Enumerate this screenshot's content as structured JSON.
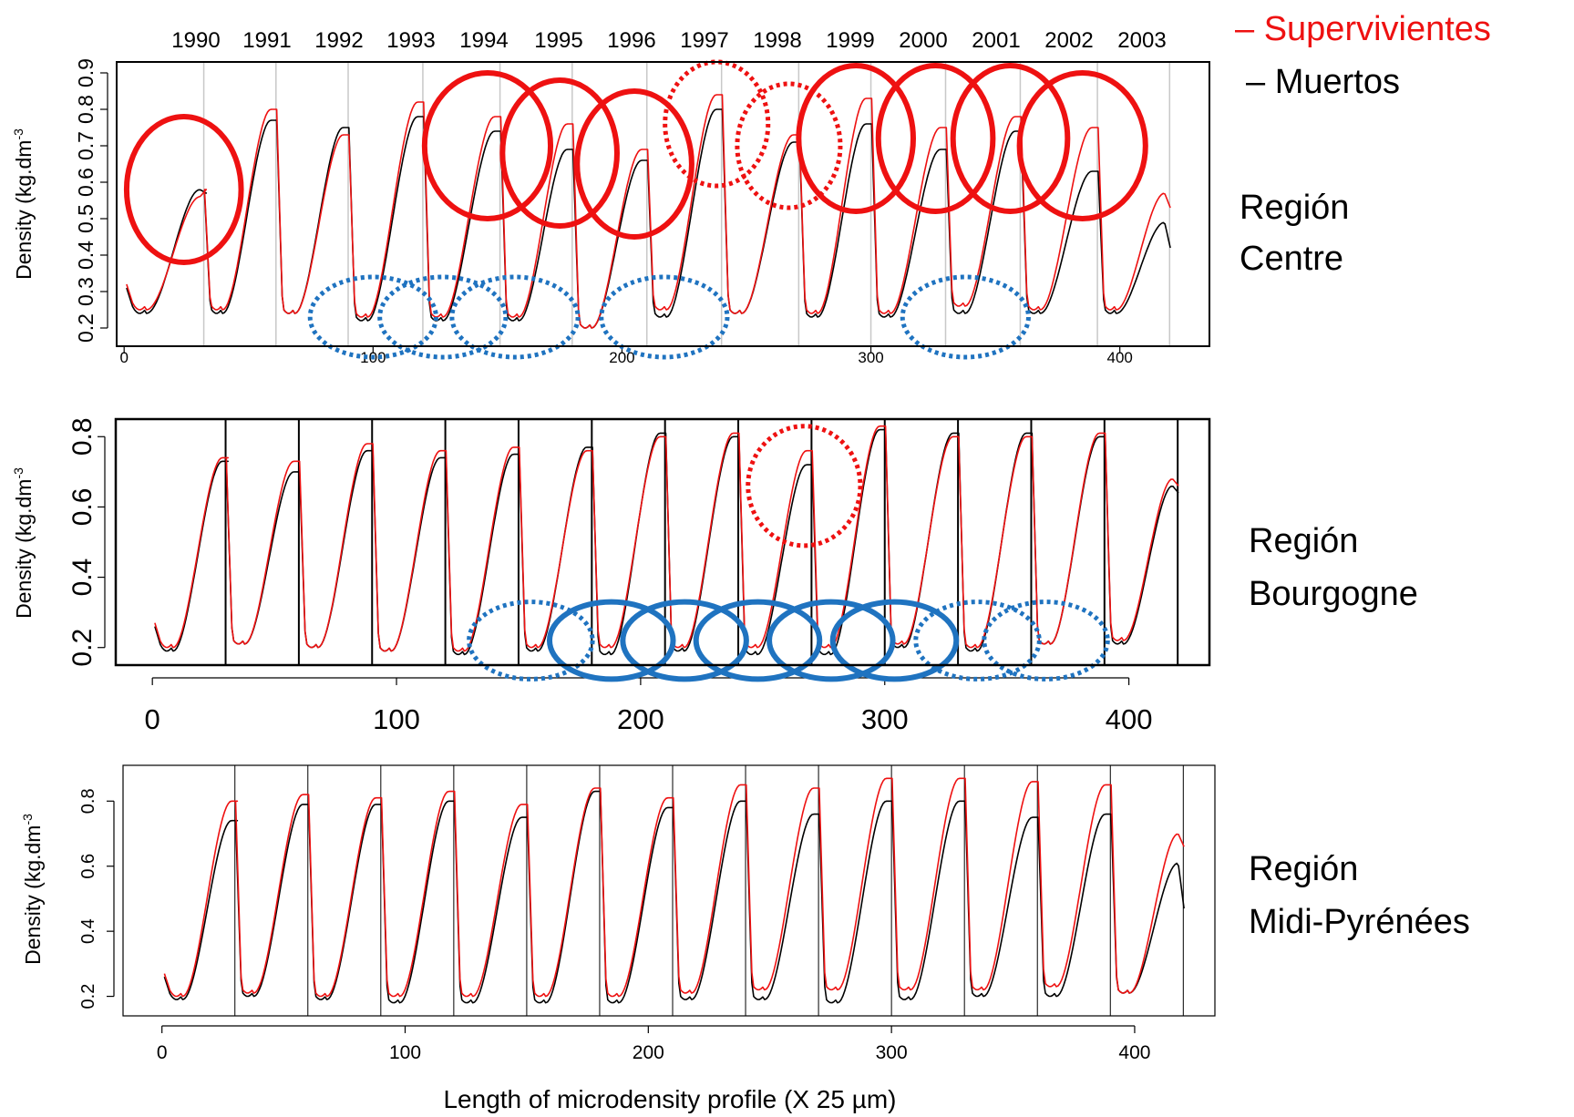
{
  "legend": {
    "items": [
      {
        "label": "– Supervivientes",
        "color": "#ee1111"
      },
      {
        "label": "– Muertos",
        "color": "#000000"
      }
    ]
  },
  "colors": {
    "survivors": "#ee1111",
    "dead": "#000000",
    "circle_red": "#ee1111",
    "circle_blue": "#1f73c0",
    "year_divider_top": "#c8c8c8",
    "year_divider_other": "#000000"
  },
  "chart_data": [
    {
      "type": "line",
      "region": "Región Centre",
      "region_lines": [
        "Región",
        "Centre"
      ],
      "ylabel": "Density (kg.dm",
      "ylabel_sup": "-3",
      "xlabel": "",
      "xlim": [
        -3,
        436
      ],
      "ylim": [
        0.15,
        0.93
      ],
      "x_ticks": [
        0,
        100,
        200,
        300,
        400
      ],
      "y_ticks": [
        0.2,
        0.3,
        0.4,
        0.5,
        0.6,
        0.7,
        0.8,
        0.9
      ],
      "y_tick_labels": [
        "0.2",
        "0.3",
        "0.4",
        "0.5",
        "0.6",
        "0.7",
        "0.8",
        "0.9"
      ],
      "year_labels": [
        "1990",
        "1991",
        "1992",
        "1993",
        "1994",
        "1995",
        "1996",
        "1997",
        "1998",
        "1999",
        "2000",
        "2001",
        "2002",
        "2003"
      ],
      "year_boundaries": [
        0,
        32,
        61,
        90,
        120,
        151,
        180,
        210,
        240,
        271,
        300,
        330,
        360,
        391,
        420
      ],
      "rings": [
        {
          "min_s": 0.25,
          "min_d": 0.24,
          "max_s": 0.56,
          "max_d": 0.58,
          "end_s": 0.58,
          "end_d": 0.57
        },
        {
          "min_s": 0.25,
          "min_d": 0.24,
          "max_s": 0.8,
          "max_d": 0.77,
          "end_s": 0.8,
          "end_d": 0.77
        },
        {
          "min_s": 0.24,
          "min_d": 0.24,
          "max_s": 0.73,
          "max_d": 0.75,
          "end_s": 0.73,
          "end_d": 0.75
        },
        {
          "min_s": 0.23,
          "min_d": 0.22,
          "max_s": 0.82,
          "max_d": 0.78,
          "end_s": 0.82,
          "end_d": 0.78
        },
        {
          "min_s": 0.23,
          "min_d": 0.22,
          "max_s": 0.78,
          "max_d": 0.74,
          "end_s": 0.78,
          "end_d": 0.74
        },
        {
          "min_s": 0.23,
          "min_d": 0.22,
          "max_s": 0.76,
          "max_d": 0.69,
          "end_s": 0.76,
          "end_d": 0.69
        },
        {
          "min_s": 0.2,
          "min_d": 0.2,
          "max_s": 0.69,
          "max_d": 0.66,
          "end_s": 0.69,
          "end_d": 0.66
        },
        {
          "min_s": 0.25,
          "min_d": 0.23,
          "max_s": 0.84,
          "max_d": 0.8,
          "end_s": 0.84,
          "end_d": 0.8
        },
        {
          "min_s": 0.24,
          "min_d": 0.24,
          "max_s": 0.73,
          "max_d": 0.71,
          "end_s": 0.73,
          "end_d": 0.71
        },
        {
          "min_s": 0.24,
          "min_d": 0.23,
          "max_s": 0.83,
          "max_d": 0.76,
          "end_s": 0.83,
          "end_d": 0.76
        },
        {
          "min_s": 0.24,
          "min_d": 0.23,
          "max_s": 0.75,
          "max_d": 0.69,
          "end_s": 0.75,
          "end_d": 0.69
        },
        {
          "min_s": 0.26,
          "min_d": 0.24,
          "max_s": 0.78,
          "max_d": 0.74,
          "end_s": 0.78,
          "end_d": 0.74
        },
        {
          "min_s": 0.25,
          "min_d": 0.24,
          "max_s": 0.75,
          "max_d": 0.63,
          "end_s": 0.75,
          "end_d": 0.63
        },
        {
          "min_s": 0.25,
          "min_d": 0.24,
          "max_s": 0.57,
          "max_d": 0.49,
          "end_s": 0.53,
          "end_d": 0.42
        }
      ],
      "highlight_circles": [
        {
          "x": 24,
          "y": 0.58,
          "rx": 10,
          "ry": 0.2,
          "color": "red",
          "style": "solid"
        },
        {
          "x": 146,
          "y": 0.7,
          "rx": 11,
          "ry": 0.2,
          "color": "red",
          "style": "solid"
        },
        {
          "x": 175,
          "y": 0.68,
          "rx": 10,
          "ry": 0.2,
          "color": "red",
          "style": "solid"
        },
        {
          "x": 205,
          "y": 0.65,
          "rx": 10,
          "ry": 0.2,
          "color": "red",
          "style": "solid"
        },
        {
          "x": 238,
          "y": 0.76,
          "rx": 9,
          "ry": 0.17,
          "color": "red",
          "style": "dotted"
        },
        {
          "x": 267,
          "y": 0.7,
          "rx": 9,
          "ry": 0.17,
          "color": "red",
          "style": "dotted"
        },
        {
          "x": 294,
          "y": 0.72,
          "rx": 10,
          "ry": 0.2,
          "color": "red",
          "style": "solid"
        },
        {
          "x": 326,
          "y": 0.72,
          "rx": 10,
          "ry": 0.2,
          "color": "red",
          "style": "solid"
        },
        {
          "x": 356,
          "y": 0.72,
          "rx": 10,
          "ry": 0.2,
          "color": "red",
          "style": "solid"
        },
        {
          "x": 385,
          "y": 0.7,
          "rx": 11,
          "ry": 0.2,
          "color": "red",
          "style": "solid"
        },
        {
          "x": 100,
          "y": 0.23,
          "rx": 11,
          "ry": 0.11,
          "color": "blue",
          "style": "dotted"
        },
        {
          "x": 128,
          "y": 0.23,
          "rx": 11,
          "ry": 0.11,
          "color": "blue",
          "style": "dotted"
        },
        {
          "x": 157,
          "y": 0.23,
          "rx": 11,
          "ry": 0.11,
          "color": "blue",
          "style": "dotted"
        },
        {
          "x": 217,
          "y": 0.23,
          "rx": 11,
          "ry": 0.11,
          "color": "blue",
          "style": "dotted"
        },
        {
          "x": 338,
          "y": 0.23,
          "rx": 11,
          "ry": 0.11,
          "color": "blue",
          "style": "dotted"
        }
      ]
    },
    {
      "type": "line",
      "region": "Región Bourgogne",
      "region_lines": [
        "Región",
        "Bourgogne"
      ],
      "ylabel": "Density (kg.dm",
      "ylabel_sup": "-3",
      "xlabel": "",
      "xlim": [
        -15,
        433
      ],
      "ylim": [
        0.15,
        0.85
      ],
      "x_ticks": [
        0,
        100,
        200,
        300,
        400
      ],
      "y_ticks": [
        0.2,
        0.4,
        0.6,
        0.8
      ],
      "y_tick_labels": [
        "0.2",
        "0.4",
        "0.6",
        "0.8"
      ],
      "year_boundaries": [
        0,
        30,
        60,
        90,
        120,
        150,
        180,
        210,
        240,
        270,
        300,
        330,
        360,
        390,
        420
      ],
      "rings": [
        {
          "min_s": 0.2,
          "min_d": 0.19,
          "max_s": 0.74,
          "max_d": 0.73,
          "end_s": 0.74,
          "end_d": 0.73
        },
        {
          "min_s": 0.21,
          "min_d": 0.21,
          "max_s": 0.73,
          "max_d": 0.7,
          "end_s": 0.73,
          "end_d": 0.7
        },
        {
          "min_s": 0.2,
          "min_d": 0.2,
          "max_s": 0.78,
          "max_d": 0.76,
          "end_s": 0.78,
          "end_d": 0.76
        },
        {
          "min_s": 0.19,
          "min_d": 0.19,
          "max_s": 0.76,
          "max_d": 0.74,
          "end_s": 0.76,
          "end_d": 0.74
        },
        {
          "min_s": 0.19,
          "min_d": 0.18,
          "max_s": 0.77,
          "max_d": 0.75,
          "end_s": 0.77,
          "end_d": 0.75
        },
        {
          "min_s": 0.2,
          "min_d": 0.19,
          "max_s": 0.76,
          "max_d": 0.77,
          "end_s": 0.76,
          "end_d": 0.77
        },
        {
          "min_s": 0.2,
          "min_d": 0.18,
          "max_s": 0.8,
          "max_d": 0.81,
          "end_s": 0.8,
          "end_d": 0.81
        },
        {
          "min_s": 0.2,
          "min_d": 0.19,
          "max_s": 0.81,
          "max_d": 0.8,
          "end_s": 0.81,
          "end_d": 0.8
        },
        {
          "min_s": 0.2,
          "min_d": 0.18,
          "max_s": 0.76,
          "max_d": 0.72,
          "end_s": 0.76,
          "end_d": 0.72
        },
        {
          "min_s": 0.2,
          "min_d": 0.18,
          "max_s": 0.83,
          "max_d": 0.82,
          "end_s": 0.83,
          "end_d": 0.82
        },
        {
          "min_s": 0.21,
          "min_d": 0.2,
          "max_s": 0.8,
          "max_d": 0.81,
          "end_s": 0.8,
          "end_d": 0.81
        },
        {
          "min_s": 0.2,
          "min_d": 0.19,
          "max_s": 0.8,
          "max_d": 0.81,
          "end_s": 0.8,
          "end_d": 0.81
        },
        {
          "min_s": 0.21,
          "min_d": 0.21,
          "max_s": 0.81,
          "max_d": 0.8,
          "end_s": 0.81,
          "end_d": 0.8
        },
        {
          "min_s": 0.22,
          "min_d": 0.21,
          "max_s": 0.68,
          "max_d": 0.66,
          "end_s": 0.66,
          "end_d": 0.64
        }
      ],
      "highlight_circles": [
        {
          "x": 267,
          "y": 0.66,
          "rx": 10,
          "ry": 0.17,
          "color": "red",
          "style": "dotted"
        },
        {
          "x": 155,
          "y": 0.22,
          "rx": 11,
          "ry": 0.11,
          "color": "blue",
          "style": "dotted"
        },
        {
          "x": 188,
          "y": 0.22,
          "rx": 11,
          "ry": 0.11,
          "color": "blue",
          "style": "solid"
        },
        {
          "x": 218,
          "y": 0.22,
          "rx": 11,
          "ry": 0.11,
          "color": "blue",
          "style": "solid"
        },
        {
          "x": 248,
          "y": 0.22,
          "rx": 11,
          "ry": 0.11,
          "color": "blue",
          "style": "solid"
        },
        {
          "x": 278,
          "y": 0.22,
          "rx": 11,
          "ry": 0.11,
          "color": "blue",
          "style": "solid"
        },
        {
          "x": 304,
          "y": 0.22,
          "rx": 11,
          "ry": 0.11,
          "color": "blue",
          "style": "solid"
        },
        {
          "x": 338,
          "y": 0.22,
          "rx": 11,
          "ry": 0.11,
          "color": "blue",
          "style": "dotted"
        },
        {
          "x": 366,
          "y": 0.22,
          "rx": 11,
          "ry": 0.11,
          "color": "blue",
          "style": "dotted"
        }
      ]
    },
    {
      "type": "line",
      "region": "Región Midi-Pyrénées",
      "region_lines": [
        "Región",
        "Midi-Pyrénées"
      ],
      "ylabel": "Density (kg.dm",
      "ylabel_sup": "-3",
      "xlabel": "Length of microdensity profile (X 25 µm)",
      "xlim": [
        -16,
        433
      ],
      "ylim": [
        0.14,
        0.91
      ],
      "x_ticks": [
        0,
        100,
        200,
        300,
        400
      ],
      "y_ticks": [
        0.2,
        0.4,
        0.6,
        0.8
      ],
      "y_tick_labels": [
        "0.2",
        "0.4",
        "0.6",
        "0.8"
      ],
      "year_boundaries": [
        0,
        30,
        60,
        90,
        120,
        150,
        180,
        210,
        240,
        270,
        300,
        330,
        360,
        390,
        420
      ],
      "rings": [
        {
          "min_s": 0.2,
          "min_d": 0.19,
          "max_s": 0.8,
          "max_d": 0.74,
          "end_s": 0.8,
          "end_d": 0.74
        },
        {
          "min_s": 0.21,
          "min_d": 0.2,
          "max_s": 0.82,
          "max_d": 0.79,
          "end_s": 0.82,
          "end_d": 0.79
        },
        {
          "min_s": 0.2,
          "min_d": 0.19,
          "max_s": 0.81,
          "max_d": 0.79,
          "end_s": 0.81,
          "end_d": 0.79
        },
        {
          "min_s": 0.2,
          "min_d": 0.18,
          "max_s": 0.83,
          "max_d": 0.8,
          "end_s": 0.83,
          "end_d": 0.8
        },
        {
          "min_s": 0.2,
          "min_d": 0.18,
          "max_s": 0.79,
          "max_d": 0.75,
          "end_s": 0.79,
          "end_d": 0.75
        },
        {
          "min_s": 0.2,
          "min_d": 0.18,
          "max_s": 0.84,
          "max_d": 0.83,
          "end_s": 0.84,
          "end_d": 0.83
        },
        {
          "min_s": 0.2,
          "min_d": 0.18,
          "max_s": 0.81,
          "max_d": 0.78,
          "end_s": 0.81,
          "end_d": 0.78
        },
        {
          "min_s": 0.21,
          "min_d": 0.19,
          "max_s": 0.85,
          "max_d": 0.8,
          "end_s": 0.85,
          "end_d": 0.8
        },
        {
          "min_s": 0.22,
          "min_d": 0.19,
          "max_s": 0.84,
          "max_d": 0.76,
          "end_s": 0.84,
          "end_d": 0.76
        },
        {
          "min_s": 0.22,
          "min_d": 0.18,
          "max_s": 0.87,
          "max_d": 0.8,
          "end_s": 0.87,
          "end_d": 0.8
        },
        {
          "min_s": 0.22,
          "min_d": 0.19,
          "max_s": 0.87,
          "max_d": 0.8,
          "end_s": 0.87,
          "end_d": 0.8
        },
        {
          "min_s": 0.22,
          "min_d": 0.2,
          "max_s": 0.86,
          "max_d": 0.75,
          "end_s": 0.86,
          "end_d": 0.75
        },
        {
          "min_s": 0.23,
          "min_d": 0.2,
          "max_s": 0.85,
          "max_d": 0.76,
          "end_s": 0.85,
          "end_d": 0.76
        },
        {
          "min_s": 0.21,
          "min_d": 0.21,
          "max_s": 0.7,
          "max_d": 0.61,
          "end_s": 0.66,
          "end_d": 0.47
        }
      ],
      "highlight_circles": []
    }
  ]
}
